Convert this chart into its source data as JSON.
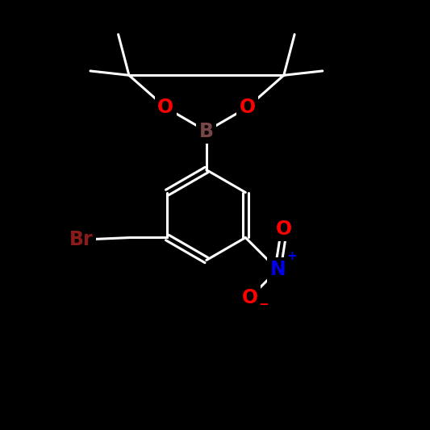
{
  "background_color": "#000000",
  "fig_size": [
    5.33,
    5.33
  ],
  "dpi": 100,
  "atom_colors": {
    "C": "#ffffff",
    "O": "#ff0000",
    "B": "#7a4545",
    "N": "#0000ee",
    "Br": "#8b1a1a"
  },
  "bond_color": "#ffffff",
  "bond_width": 2.2,
  "font_size_atom": 17,
  "font_weight": "bold"
}
